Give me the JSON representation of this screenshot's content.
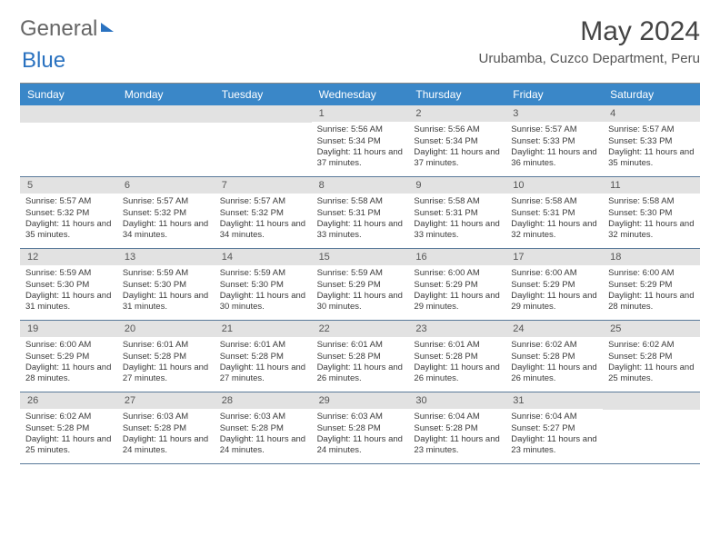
{
  "logo": {
    "part1": "General",
    "part2": "Blue"
  },
  "title": "May 2024",
  "location": "Urubamba, Cuzco Department, Peru",
  "colors": {
    "header_bg": "#3a87c8",
    "daynum_bg": "#e2e2e2",
    "border": "#5a7a9a"
  },
  "daynames": [
    "Sunday",
    "Monday",
    "Tuesday",
    "Wednesday",
    "Thursday",
    "Friday",
    "Saturday"
  ],
  "weeks": [
    [
      {
        "n": "",
        "sr": "",
        "ss": "",
        "dl": ""
      },
      {
        "n": "",
        "sr": "",
        "ss": "",
        "dl": ""
      },
      {
        "n": "",
        "sr": "",
        "ss": "",
        "dl": ""
      },
      {
        "n": "1",
        "sr": "5:56 AM",
        "ss": "5:34 PM",
        "dl": "11 hours and 37 minutes."
      },
      {
        "n": "2",
        "sr": "5:56 AM",
        "ss": "5:34 PM",
        "dl": "11 hours and 37 minutes."
      },
      {
        "n": "3",
        "sr": "5:57 AM",
        "ss": "5:33 PM",
        "dl": "11 hours and 36 minutes."
      },
      {
        "n": "4",
        "sr": "5:57 AM",
        "ss": "5:33 PM",
        "dl": "11 hours and 35 minutes."
      }
    ],
    [
      {
        "n": "5",
        "sr": "5:57 AM",
        "ss": "5:32 PM",
        "dl": "11 hours and 35 minutes."
      },
      {
        "n": "6",
        "sr": "5:57 AM",
        "ss": "5:32 PM",
        "dl": "11 hours and 34 minutes."
      },
      {
        "n": "7",
        "sr": "5:57 AM",
        "ss": "5:32 PM",
        "dl": "11 hours and 34 minutes."
      },
      {
        "n": "8",
        "sr": "5:58 AM",
        "ss": "5:31 PM",
        "dl": "11 hours and 33 minutes."
      },
      {
        "n": "9",
        "sr": "5:58 AM",
        "ss": "5:31 PM",
        "dl": "11 hours and 33 minutes."
      },
      {
        "n": "10",
        "sr": "5:58 AM",
        "ss": "5:31 PM",
        "dl": "11 hours and 32 minutes."
      },
      {
        "n": "11",
        "sr": "5:58 AM",
        "ss": "5:30 PM",
        "dl": "11 hours and 32 minutes."
      }
    ],
    [
      {
        "n": "12",
        "sr": "5:59 AM",
        "ss": "5:30 PM",
        "dl": "11 hours and 31 minutes."
      },
      {
        "n": "13",
        "sr": "5:59 AM",
        "ss": "5:30 PM",
        "dl": "11 hours and 31 minutes."
      },
      {
        "n": "14",
        "sr": "5:59 AM",
        "ss": "5:30 PM",
        "dl": "11 hours and 30 minutes."
      },
      {
        "n": "15",
        "sr": "5:59 AM",
        "ss": "5:29 PM",
        "dl": "11 hours and 30 minutes."
      },
      {
        "n": "16",
        "sr": "6:00 AM",
        "ss": "5:29 PM",
        "dl": "11 hours and 29 minutes."
      },
      {
        "n": "17",
        "sr": "6:00 AM",
        "ss": "5:29 PM",
        "dl": "11 hours and 29 minutes."
      },
      {
        "n": "18",
        "sr": "6:00 AM",
        "ss": "5:29 PM",
        "dl": "11 hours and 28 minutes."
      }
    ],
    [
      {
        "n": "19",
        "sr": "6:00 AM",
        "ss": "5:29 PM",
        "dl": "11 hours and 28 minutes."
      },
      {
        "n": "20",
        "sr": "6:01 AM",
        "ss": "5:28 PM",
        "dl": "11 hours and 27 minutes."
      },
      {
        "n": "21",
        "sr": "6:01 AM",
        "ss": "5:28 PM",
        "dl": "11 hours and 27 minutes."
      },
      {
        "n": "22",
        "sr": "6:01 AM",
        "ss": "5:28 PM",
        "dl": "11 hours and 26 minutes."
      },
      {
        "n": "23",
        "sr": "6:01 AM",
        "ss": "5:28 PM",
        "dl": "11 hours and 26 minutes."
      },
      {
        "n": "24",
        "sr": "6:02 AM",
        "ss": "5:28 PM",
        "dl": "11 hours and 26 minutes."
      },
      {
        "n": "25",
        "sr": "6:02 AM",
        "ss": "5:28 PM",
        "dl": "11 hours and 25 minutes."
      }
    ],
    [
      {
        "n": "26",
        "sr": "6:02 AM",
        "ss": "5:28 PM",
        "dl": "11 hours and 25 minutes."
      },
      {
        "n": "27",
        "sr": "6:03 AM",
        "ss": "5:28 PM",
        "dl": "11 hours and 24 minutes."
      },
      {
        "n": "28",
        "sr": "6:03 AM",
        "ss": "5:28 PM",
        "dl": "11 hours and 24 minutes."
      },
      {
        "n": "29",
        "sr": "6:03 AM",
        "ss": "5:28 PM",
        "dl": "11 hours and 24 minutes."
      },
      {
        "n": "30",
        "sr": "6:04 AM",
        "ss": "5:28 PM",
        "dl": "11 hours and 23 minutes."
      },
      {
        "n": "31",
        "sr": "6:04 AM",
        "ss": "5:27 PM",
        "dl": "11 hours and 23 minutes."
      },
      {
        "n": "",
        "sr": "",
        "ss": "",
        "dl": ""
      }
    ]
  ],
  "labels": {
    "sunrise": "Sunrise:",
    "sunset": "Sunset:",
    "daylight": "Daylight:"
  }
}
